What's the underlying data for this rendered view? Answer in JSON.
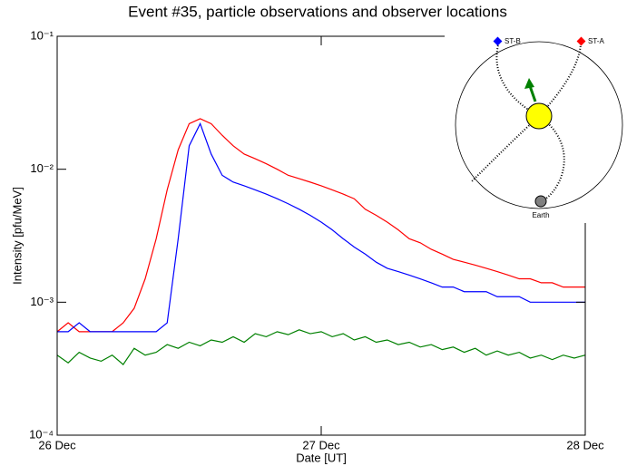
{
  "chart_data": {
    "type": "line",
    "title": "Event #35, particle observations and observer locations",
    "x_label": "Date [UT]",
    "y_label": "Intensity [pfu/MeV]",
    "log_y": true,
    "xlim": [
      0,
      48
    ],
    "xticks": [
      {
        "value": 0,
        "label": "26 Dec"
      },
      {
        "value": 24,
        "label": "27 Dec"
      },
      {
        "value": 48,
        "label": "28 Dec"
      }
    ],
    "ylim": [
      0.0001,
      0.1
    ],
    "yticks": [
      {
        "value": 0.0001,
        "label": "10⁻⁴"
      },
      {
        "value": 0.001,
        "label": "10⁻³"
      },
      {
        "value": 0.01,
        "label": "10⁻²"
      },
      {
        "value": 0.1,
        "label": "10⁻¹"
      }
    ],
    "x": [
      0,
      1,
      2,
      3,
      4,
      5,
      6,
      7,
      8,
      9,
      10,
      11,
      12,
      13,
      14,
      15,
      16,
      17,
      18,
      19,
      20,
      21,
      22,
      23,
      24,
      25,
      26,
      27,
      28,
      29,
      30,
      31,
      32,
      33,
      34,
      35,
      36,
      37,
      38,
      39,
      40,
      41,
      42,
      43,
      44,
      45,
      46,
      47,
      48
    ],
    "series": [
      {
        "name": "ST-A",
        "color": "#ff0000",
        "values": [
          0.0006,
          0.0007,
          0.0006,
          0.0006,
          0.0006,
          0.0006,
          0.0007,
          0.0009,
          0.0015,
          0.003,
          0.007,
          0.014,
          0.022,
          0.024,
          0.022,
          0.018,
          0.015,
          0.013,
          0.012,
          0.011,
          0.01,
          0.009,
          0.0085,
          0.008,
          0.0075,
          0.007,
          0.0065,
          0.006,
          0.005,
          0.0045,
          0.004,
          0.0035,
          0.003,
          0.0028,
          0.0025,
          0.0023,
          0.0021,
          0.002,
          0.0019,
          0.0018,
          0.0017,
          0.0016,
          0.0015,
          0.0015,
          0.0014,
          0.0014,
          0.0013,
          0.0013,
          0.0013
        ]
      },
      {
        "name": "ST-B",
        "color": "#0000ff",
        "values": [
          0.0006,
          0.0006,
          0.0007,
          0.0006,
          0.0006,
          0.0006,
          0.0006,
          0.0006,
          0.0006,
          0.0006,
          0.0007,
          0.003,
          0.015,
          0.022,
          0.013,
          0.009,
          0.008,
          0.0075,
          0.007,
          0.0065,
          0.006,
          0.0055,
          0.005,
          0.0045,
          0.004,
          0.0035,
          0.003,
          0.0026,
          0.0023,
          0.002,
          0.0018,
          0.0017,
          0.0016,
          0.0015,
          0.0014,
          0.0013,
          0.0013,
          0.0012,
          0.0012,
          0.0012,
          0.0011,
          0.0011,
          0.0011,
          0.001,
          0.001,
          0.001,
          0.001,
          0.001,
          0.001
        ]
      },
      {
        "name": "Earth",
        "color": "#008000",
        "values": [
          0.0004,
          0.00035,
          0.00042,
          0.00038,
          0.00036,
          0.0004,
          0.00034,
          0.00045,
          0.0004,
          0.00042,
          0.00048,
          0.00045,
          0.0005,
          0.00047,
          0.00052,
          0.0005,
          0.00055,
          0.0005,
          0.00058,
          0.00055,
          0.0006,
          0.00057,
          0.00062,
          0.00058,
          0.0006,
          0.00055,
          0.00058,
          0.00052,
          0.00055,
          0.0005,
          0.00052,
          0.00048,
          0.0005,
          0.00046,
          0.00048,
          0.00044,
          0.00046,
          0.00042,
          0.00045,
          0.0004,
          0.00043,
          0.0004,
          0.00042,
          0.00038,
          0.0004,
          0.00037,
          0.0004,
          0.00038,
          0.0004
        ]
      }
    ],
    "inset": {
      "labels": [
        "ST-B",
        "ST-A",
        "Earth"
      ]
    }
  }
}
